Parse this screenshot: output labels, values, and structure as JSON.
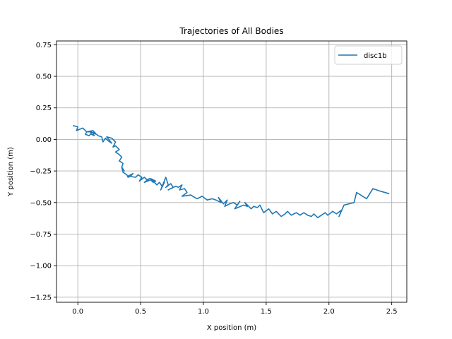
{
  "chart_data": {
    "type": "line",
    "title": "Trajectories of All Bodies",
    "xlabel": "X position (m)",
    "ylabel": "Y position (m)",
    "xlim": [
      -0.17,
      2.62
    ],
    "ylim": [
      -1.29,
      0.78
    ],
    "xticks": [
      0.0,
      0.5,
      1.0,
      1.5,
      2.0,
      2.5
    ],
    "xtick_labels": [
      "0.0",
      "0.5",
      "1.0",
      "1.5",
      "2.0",
      "2.5"
    ],
    "yticks": [
      -1.25,
      -1.0,
      -0.75,
      -0.5,
      -0.25,
      0.0,
      0.25,
      0.5,
      0.75
    ],
    "ytick_labels": [
      "−1.25",
      "−1.00",
      "−0.75",
      "−0.50",
      "−0.25",
      "0.00",
      "0.25",
      "0.50",
      "0.75"
    ],
    "grid": true,
    "legend_position": "upper right",
    "series": [
      {
        "name": "disc1b",
        "color": "#1f77b4",
        "x": [
          -0.04,
          0.0,
          -0.01,
          0.04,
          0.07,
          0.06,
          0.09,
          0.1,
          0.11,
          0.07,
          0.12,
          0.14,
          0.1,
          0.11,
          0.13,
          0.12,
          0.15,
          0.16,
          0.19,
          0.2,
          0.22,
          0.24,
          0.27,
          0.23,
          0.27,
          0.3,
          0.28,
          0.3,
          0.33,
          0.3,
          0.33,
          0.35,
          0.33,
          0.36,
          0.35,
          0.37,
          0.35,
          0.36,
          0.39,
          0.4,
          0.42,
          0.44,
          0.4,
          0.46,
          0.48,
          0.51,
          0.49,
          0.53,
          0.55,
          0.57,
          0.53,
          0.58,
          0.6,
          0.62,
          0.58,
          0.63,
          0.65,
          0.67,
          0.69,
          0.66,
          0.7,
          0.72,
          0.7,
          0.74,
          0.76,
          0.72,
          0.78,
          0.8,
          0.83,
          0.81,
          0.85,
          0.87,
          0.83,
          0.9,
          0.93,
          0.95,
          0.99,
          1.03,
          1.07,
          1.1,
          1.14,
          1.12,
          1.16,
          1.19,
          1.17,
          1.21,
          1.24,
          1.27,
          1.29,
          1.25,
          1.32,
          1.35,
          1.33,
          1.38,
          1.4,
          1.43,
          1.45,
          1.48,
          1.52,
          1.55,
          1.58,
          1.62,
          1.65,
          1.67,
          1.7,
          1.74,
          1.77,
          1.8,
          1.83,
          1.86,
          1.88,
          1.91,
          1.94,
          1.97,
          1.99,
          2.03,
          2.06,
          2.1,
          2.08,
          2.12,
          2.2,
          2.22,
          2.3,
          2.35,
          2.41,
          2.48
        ],
        "y": [
          0.11,
          0.1,
          0.07,
          0.09,
          0.06,
          0.04,
          0.03,
          0.04,
          0.06,
          0.06,
          0.07,
          0.05,
          0.06,
          0.04,
          0.03,
          0.05,
          0.04,
          0.03,
          0.02,
          -0.02,
          0.01,
          -0.01,
          -0.03,
          0.02,
          0.01,
          -0.02,
          -0.06,
          -0.05,
          -0.08,
          -0.1,
          -0.12,
          -0.14,
          -0.17,
          -0.19,
          -0.22,
          -0.25,
          -0.22,
          -0.26,
          -0.28,
          -0.3,
          -0.29,
          -0.27,
          -0.29,
          -0.3,
          -0.28,
          -0.3,
          -0.33,
          -0.3,
          -0.32,
          -0.31,
          -0.34,
          -0.32,
          -0.34,
          -0.33,
          -0.31,
          -0.36,
          -0.34,
          -0.37,
          -0.34,
          -0.4,
          -0.3,
          -0.36,
          -0.38,
          -0.35,
          -0.38,
          -0.4,
          -0.37,
          -0.38,
          -0.36,
          -0.4,
          -0.39,
          -0.42,
          -0.45,
          -0.44,
          -0.46,
          -0.47,
          -0.45,
          -0.48,
          -0.47,
          -0.48,
          -0.5,
          -0.46,
          -0.51,
          -0.48,
          -0.53,
          -0.51,
          -0.5,
          -0.52,
          -0.49,
          -0.55,
          -0.52,
          -0.53,
          -0.5,
          -0.55,
          -0.53,
          -0.54,
          -0.52,
          -0.58,
          -0.55,
          -0.59,
          -0.57,
          -0.61,
          -0.59,
          -0.57,
          -0.6,
          -0.58,
          -0.6,
          -0.58,
          -0.6,
          -0.61,
          -0.59,
          -0.62,
          -0.6,
          -0.58,
          -0.6,
          -0.57,
          -0.59,
          -0.56,
          -0.61,
          -0.52,
          -0.5,
          -0.42,
          -0.47,
          -0.39,
          -0.41,
          -0.43
        ]
      }
    ]
  }
}
